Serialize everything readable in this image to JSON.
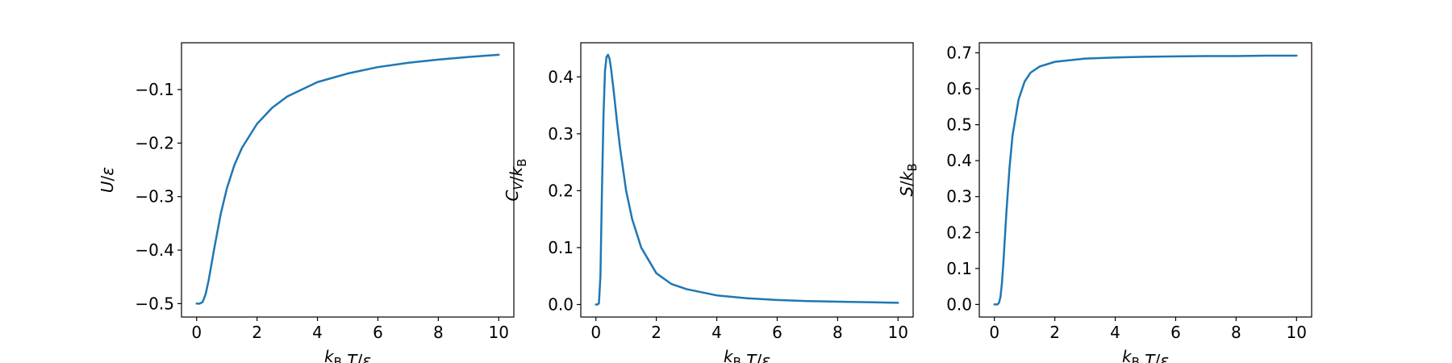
{
  "chart_data": [
    {
      "type": "line",
      "xlabel": "k_B T/ε",
      "ylabel": "U/ε",
      "xlim": [
        -0.5,
        10.5
      ],
      "ylim": [
        -0.525,
        -0.0125
      ],
      "xticks": [
        0,
        2,
        4,
        6,
        8,
        10
      ],
      "xtick_labels": [
        "0",
        "2",
        "4",
        "6",
        "8",
        "10"
      ],
      "yticks": [
        -0.5,
        -0.4,
        -0.3,
        -0.2,
        -0.1
      ],
      "ytick_labels": [
        "−0.5",
        "−0.4",
        "−0.3",
        "−0.2",
        "−0.1"
      ],
      "grid": false,
      "series": [
        {
          "color": "#1f77b4",
          "x": [
            0.0,
            0.1,
            0.2,
            0.3,
            0.4,
            0.5,
            0.6,
            0.8,
            1.0,
            1.25,
            1.5,
            2.0,
            2.5,
            3.0,
            4.0,
            5.0,
            6.0,
            7.0,
            8.0,
            9.0,
            10.0
          ],
          "y": [
            -0.5,
            -0.5,
            -0.497,
            -0.482,
            -0.456,
            -0.424,
            -0.392,
            -0.332,
            -0.285,
            -0.241,
            -0.209,
            -0.164,
            -0.134,
            -0.113,
            -0.086,
            -0.07,
            -0.058,
            -0.05,
            -0.044,
            -0.039,
            -0.035
          ]
        }
      ]
    },
    {
      "type": "line",
      "xlabel": "k_B T/ε",
      "ylabel": "C_V/k_B",
      "xlim": [
        -0.5,
        10.5
      ],
      "ylim": [
        -0.022,
        0.46
      ],
      "xticks": [
        0,
        2,
        4,
        6,
        8,
        10
      ],
      "xtick_labels": [
        "0",
        "2",
        "4",
        "6",
        "8",
        "10"
      ],
      "yticks": [
        0.0,
        0.1,
        0.2,
        0.3,
        0.4
      ],
      "ytick_labels": [
        "0.0",
        "0.1",
        "0.2",
        "0.3",
        "0.4"
      ],
      "grid": false,
      "series": [
        {
          "color": "#1f77b4",
          "x": [
            0.0,
            0.05,
            0.1,
            0.15,
            0.2,
            0.25,
            0.3,
            0.35,
            0.4,
            0.45,
            0.5,
            0.6,
            0.7,
            0.8,
            1.0,
            1.2,
            1.5,
            2.0,
            2.5,
            3.0,
            4.0,
            5.0,
            6.0,
            7.0,
            8.0,
            9.0,
            10.0
          ],
          "y": [
            0.0,
            0.0,
            0.002,
            0.05,
            0.2,
            0.33,
            0.41,
            0.435,
            0.439,
            0.432,
            0.415,
            0.37,
            0.32,
            0.275,
            0.2,
            0.15,
            0.1,
            0.055,
            0.036,
            0.027,
            0.016,
            0.011,
            0.008,
            0.006,
            0.005,
            0.004,
            0.003
          ]
        }
      ]
    },
    {
      "type": "line",
      "xlabel": "k_B T/ε",
      "ylabel": "S/k_B",
      "xlim": [
        -0.5,
        10.5
      ],
      "ylim": [
        -0.035,
        0.728
      ],
      "xticks": [
        0,
        2,
        4,
        6,
        8,
        10
      ],
      "xtick_labels": [
        "0",
        "2",
        "4",
        "6",
        "8",
        "10"
      ],
      "yticks": [
        0.0,
        0.1,
        0.2,
        0.3,
        0.4,
        0.5,
        0.6,
        0.7
      ],
      "ytick_labels": [
        "0.0",
        "0.1",
        "0.2",
        "0.3",
        "0.4",
        "0.5",
        "0.6",
        "0.7"
      ],
      "grid": false,
      "series": [
        {
          "color": "#1f77b4",
          "x": [
            0.0,
            0.1,
            0.15,
            0.2,
            0.25,
            0.3,
            0.4,
            0.5,
            0.6,
            0.8,
            1.0,
            1.2,
            1.5,
            2.0,
            3.0,
            4.0,
            5.0,
            6.0,
            7.0,
            8.0,
            9.0,
            10.0
          ],
          "y": [
            0.0,
            0.0,
            0.004,
            0.02,
            0.06,
            0.12,
            0.26,
            0.38,
            0.47,
            0.57,
            0.62,
            0.645,
            0.662,
            0.675,
            0.684,
            0.687,
            0.689,
            0.69,
            0.691,
            0.691,
            0.692,
            0.692
          ]
        }
      ]
    }
  ]
}
